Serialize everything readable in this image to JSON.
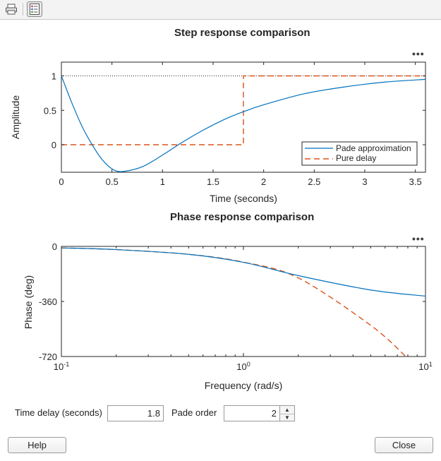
{
  "toolbar": {
    "icons": [
      "print-icon",
      "property-inspector-icon"
    ]
  },
  "step_plot": {
    "title": "Step response comparison",
    "more_label": "•••",
    "xlabel": "Time (seconds)",
    "ylabel": "Amplitude",
    "xticks": [
      "0",
      "0.5",
      "1",
      "1.5",
      "2",
      "2.5",
      "3",
      "3.5"
    ],
    "yticks": [
      "1",
      "0.5",
      "0"
    ],
    "legend": [
      "Pade approximation",
      "Pure delay"
    ]
  },
  "phase_plot": {
    "title": "Phase response comparison",
    "more_label": "•••",
    "xlabel": "Frequency (rad/s)",
    "ylabel": "Phase (deg)",
    "yticks": [
      "0",
      "-360",
      "-720"
    ],
    "xtick_base": "10",
    "xtick_exps": [
      "-1",
      "0",
      "1"
    ]
  },
  "controls": {
    "time_delay_label": "Time delay (seconds)",
    "time_delay_value": "1.8",
    "pade_order_label": "Pade order",
    "pade_order_value": "2",
    "help_label": "Help",
    "close_label": "Close"
  },
  "colors": {
    "pade": "#0072bd",
    "delay": "#d95319"
  },
  "chart_data": [
    {
      "type": "line",
      "title": "Step response comparison",
      "xlabel": "Time (seconds)",
      "ylabel": "Amplitude",
      "xlim": [
        0,
        3.6
      ],
      "ylim": [
        -0.4,
        1.2
      ],
      "series": [
        {
          "name": "Pade approximation",
          "x": [
            0,
            0.1,
            0.2,
            0.3,
            0.4,
            0.5,
            0.6,
            0.8,
            1.0,
            1.2,
            1.4,
            1.6,
            1.8,
            2.0,
            2.4,
            2.8,
            3.2,
            3.6
          ],
          "y": [
            1,
            0.62,
            0.28,
            0.01,
            -0.21,
            -0.35,
            -0.39,
            -0.32,
            -0.15,
            0.04,
            0.21,
            0.36,
            0.48,
            0.58,
            0.74,
            0.84,
            0.91,
            0.95
          ]
        },
        {
          "name": "Pure delay",
          "x": [
            0,
            1.8,
            1.8,
            3.6
          ],
          "y": [
            0,
            0,
            1,
            1
          ]
        }
      ],
      "reference_line": 1
    },
    {
      "type": "line",
      "title": "Phase response comparison",
      "xlabel": "Frequency (rad/s)",
      "ylabel": "Phase (deg)",
      "xscale": "log",
      "xlim": [
        0.1,
        10
      ],
      "ylim": [
        -720,
        0
      ],
      "series": [
        {
          "name": "Pade approximation",
          "x": [
            0.1,
            0.2,
            0.5,
            1,
            2,
            5,
            10
          ],
          "y": [
            -10,
            -21,
            -52,
            -104,
            -191,
            -285,
            -325
          ]
        },
        {
          "name": "Pure delay",
          "x": [
            0.1,
            0.2,
            0.5,
            1,
            2,
            5,
            7.8
          ],
          "y": [
            -10,
            -21,
            -52,
            -103,
            -206,
            -516,
            -720
          ]
        }
      ]
    }
  ]
}
